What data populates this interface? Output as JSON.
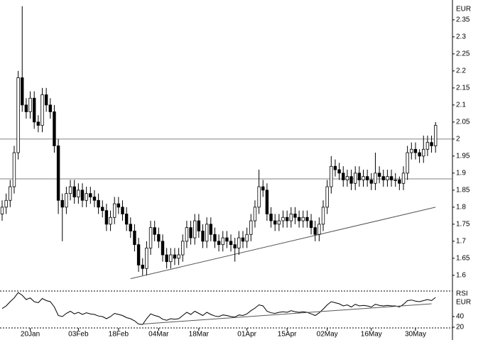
{
  "chart_data": [
    {
      "type": "candlestick",
      "y_label": "EUR",
      "categories": [
        null,
        null,
        null,
        null,
        null,
        null,
        null,
        "20Jan",
        null,
        null,
        null,
        null,
        null,
        null,
        null,
        null,
        null,
        null,
        null,
        "03Feb",
        null,
        null,
        null,
        null,
        null,
        null,
        null,
        null,
        null,
        "18Feb",
        null,
        null,
        null,
        null,
        null,
        null,
        null,
        null,
        null,
        "04Mar",
        null,
        null,
        null,
        null,
        null,
        null,
        null,
        null,
        null,
        "18Mar",
        null,
        null,
        null,
        null,
        null,
        null,
        null,
        null,
        null,
        null,
        null,
        "01Apr",
        null,
        null,
        null,
        null,
        null,
        null,
        null,
        null,
        null,
        "15Apr",
        null,
        null,
        null,
        null,
        null,
        null,
        null,
        null,
        null,
        "02May",
        null,
        null,
        null,
        null,
        null,
        null,
        null,
        null,
        null,
        null,
        "16May",
        null,
        null,
        null,
        null,
        null,
        null,
        null,
        null,
        null,
        null,
        "30May",
        null,
        null,
        null,
        null,
        null
      ],
      "open": [
        1.78,
        1.8,
        1.82,
        1.86,
        1.96,
        2.18,
        2.1,
        2.08,
        2.12,
        2.05,
        2.04,
        2.13,
        2.1,
        2.08,
        1.98,
        1.82,
        1.8,
        1.84,
        1.86,
        1.83,
        1.85,
        1.82,
        1.84,
        1.83,
        1.82,
        1.8,
        1.79,
        1.75,
        1.77,
        1.81,
        1.8,
        1.78,
        1.75,
        1.73,
        1.69,
        1.63,
        1.62,
        1.68,
        1.74,
        1.72,
        1.7,
        1.66,
        1.64,
        1.66,
        1.65,
        1.66,
        1.7,
        1.74,
        1.71,
        1.76,
        1.73,
        1.7,
        1.75,
        1.72,
        1.7,
        1.69,
        1.71,
        1.7,
        1.69,
        1.68,
        1.71,
        1.7,
        1.72,
        1.76,
        1.8,
        1.86,
        1.85,
        1.78,
        1.76,
        1.75,
        1.76,
        1.77,
        1.76,
        1.78,
        1.77,
        1.76,
        1.77,
        1.76,
        1.74,
        1.72,
        1.75,
        1.8,
        1.86,
        1.92,
        1.91,
        1.9,
        1.88,
        1.89,
        1.87,
        1.9,
        1.88,
        1.89,
        1.88,
        1.87,
        1.9,
        1.89,
        1.88,
        1.89,
        1.88,
        1.88,
        1.87,
        1.9,
        1.96,
        1.97,
        1.96,
        1.95,
        1.97,
        1.99,
        1.98
      ],
      "high": [
        1.82,
        1.84,
        1.88,
        1.98,
        2.2,
        2.39,
        2.12,
        2.14,
        2.14,
        2.07,
        2.15,
        2.15,
        2.12,
        2.1,
        2.0,
        1.84,
        1.86,
        1.88,
        1.88,
        1.87,
        1.87,
        1.86,
        1.86,
        1.85,
        1.84,
        1.82,
        1.81,
        1.79,
        1.83,
        1.83,
        1.82,
        1.8,
        1.77,
        1.75,
        1.71,
        1.65,
        1.7,
        1.76,
        1.76,
        1.74,
        1.72,
        1.68,
        1.68,
        1.68,
        1.68,
        1.72,
        1.76,
        1.76,
        1.78,
        1.78,
        1.75,
        1.77,
        1.77,
        1.74,
        1.72,
        1.73,
        1.73,
        1.72,
        1.71,
        1.73,
        1.73,
        1.74,
        1.78,
        1.82,
        1.91,
        1.88,
        1.87,
        1.8,
        1.78,
        1.78,
        1.79,
        1.79,
        1.8,
        1.8,
        1.79,
        1.79,
        1.79,
        1.78,
        1.76,
        1.77,
        1.82,
        1.88,
        1.95,
        1.94,
        1.93,
        1.92,
        1.91,
        1.91,
        1.92,
        1.92,
        1.91,
        1.91,
        1.9,
        1.96,
        1.92,
        1.91,
        1.91,
        1.91,
        1.9,
        1.89,
        1.92,
        1.98,
        1.99,
        1.99,
        1.97,
        2.01,
        2.01,
        2.01,
        2.05
      ],
      "low": [
        1.76,
        1.78,
        1.8,
        1.84,
        1.94,
        2.08,
        2.06,
        2.06,
        2.03,
        2.02,
        2.02,
        2.08,
        2.06,
        1.96,
        1.78,
        1.7,
        1.78,
        1.82,
        1.81,
        1.81,
        1.8,
        1.8,
        1.81,
        1.8,
        1.78,
        1.77,
        1.73,
        1.73,
        1.75,
        1.78,
        1.76,
        1.73,
        1.71,
        1.67,
        1.61,
        1.6,
        1.6,
        1.66,
        1.7,
        1.68,
        1.64,
        1.62,
        1.62,
        1.63,
        1.63,
        1.64,
        1.68,
        1.69,
        1.69,
        1.71,
        1.68,
        1.68,
        1.7,
        1.68,
        1.67,
        1.67,
        1.68,
        1.67,
        1.64,
        1.66,
        1.68,
        1.68,
        1.7,
        1.74,
        1.78,
        1.83,
        1.76,
        1.74,
        1.73,
        1.73,
        1.74,
        1.74,
        1.74,
        1.75,
        1.74,
        1.74,
        1.74,
        1.72,
        1.7,
        1.7,
        1.73,
        1.78,
        1.84,
        1.89,
        1.88,
        1.86,
        1.86,
        1.85,
        1.85,
        1.86,
        1.86,
        1.86,
        1.85,
        1.85,
        1.87,
        1.86,
        1.86,
        1.86,
        1.86,
        1.85,
        1.85,
        1.88,
        1.94,
        1.94,
        1.93,
        1.93,
        1.95,
        1.96,
        1.96
      ],
      "close": [
        1.8,
        1.82,
        1.86,
        1.96,
        2.18,
        2.1,
        2.08,
        2.12,
        2.05,
        2.04,
        2.13,
        2.1,
        2.08,
        1.98,
        1.82,
        1.8,
        1.84,
        1.86,
        1.83,
        1.85,
        1.82,
        1.84,
        1.83,
        1.82,
        1.8,
        1.79,
        1.75,
        1.77,
        1.81,
        1.8,
        1.78,
        1.75,
        1.73,
        1.69,
        1.63,
        1.62,
        1.68,
        1.74,
        1.72,
        1.7,
        1.66,
        1.64,
        1.66,
        1.65,
        1.66,
        1.7,
        1.74,
        1.71,
        1.76,
        1.73,
        1.7,
        1.75,
        1.72,
        1.7,
        1.69,
        1.71,
        1.7,
        1.69,
        1.68,
        1.71,
        1.7,
        1.72,
        1.76,
        1.8,
        1.86,
        1.85,
        1.78,
        1.76,
        1.75,
        1.76,
        1.77,
        1.76,
        1.78,
        1.77,
        1.76,
        1.77,
        1.76,
        1.74,
        1.72,
        1.75,
        1.8,
        1.86,
        1.92,
        1.91,
        1.9,
        1.88,
        1.89,
        1.87,
        1.9,
        1.88,
        1.89,
        1.88,
        1.87,
        1.9,
        1.89,
        1.88,
        1.89,
        1.88,
        1.88,
        1.87,
        1.9,
        1.96,
        1.97,
        1.96,
        1.95,
        1.97,
        1.99,
        1.98,
        2.04
      ],
      "up_color": "#ffffff",
      "down_color": "#000000",
      "ylim": [
        1.558,
        2.404
      ],
      "yticks": [
        1.6,
        1.65,
        1.7,
        1.75,
        1.8,
        1.85,
        1.9,
        1.95,
        2,
        2.05,
        2.1,
        2.15,
        2.2,
        2.25,
        2.3,
        2.35
      ],
      "hlines": [
        2,
        1.883
      ],
      "trendline": {
        "x": [
          32,
          108
        ],
        "values": [
          1.59,
          1.8
        ]
      }
    },
    {
      "type": "line",
      "title": "RSI",
      "y_label": "EUR",
      "color": "#000000",
      "values": [
        55,
        60,
        68,
        75,
        85,
        80,
        72,
        75,
        68,
        66,
        74,
        70,
        68,
        58,
        42,
        40,
        46,
        50,
        45,
        48,
        44,
        47,
        45,
        44,
        41,
        40,
        36,
        40,
        46,
        44,
        42,
        38,
        36,
        32,
        26,
        25,
        36,
        45,
        42,
        40,
        35,
        33,
        36,
        35,
        36,
        42,
        48,
        44,
        50,
        46,
        42,
        48,
        44,
        41,
        40,
        43,
        42,
        40,
        39,
        43,
        42,
        45,
        51,
        56,
        62,
        60,
        50,
        47,
        46,
        48,
        49,
        48,
        51,
        49,
        48,
        49,
        48,
        45,
        42,
        47,
        54,
        62,
        68,
        66,
        64,
        60,
        62,
        58,
        63,
        60,
        61,
        60,
        58,
        63,
        61,
        60,
        61,
        60,
        60,
        58,
        63,
        70,
        71,
        69,
        68,
        70,
        72,
        70,
        76
      ],
      "ylim": [
        17.3,
        88
      ],
      "yticks": [
        20,
        40
      ],
      "trendline": {
        "x": [
          35,
          107
        ],
        "values": [
          26,
          64
        ]
      }
    }
  ]
}
